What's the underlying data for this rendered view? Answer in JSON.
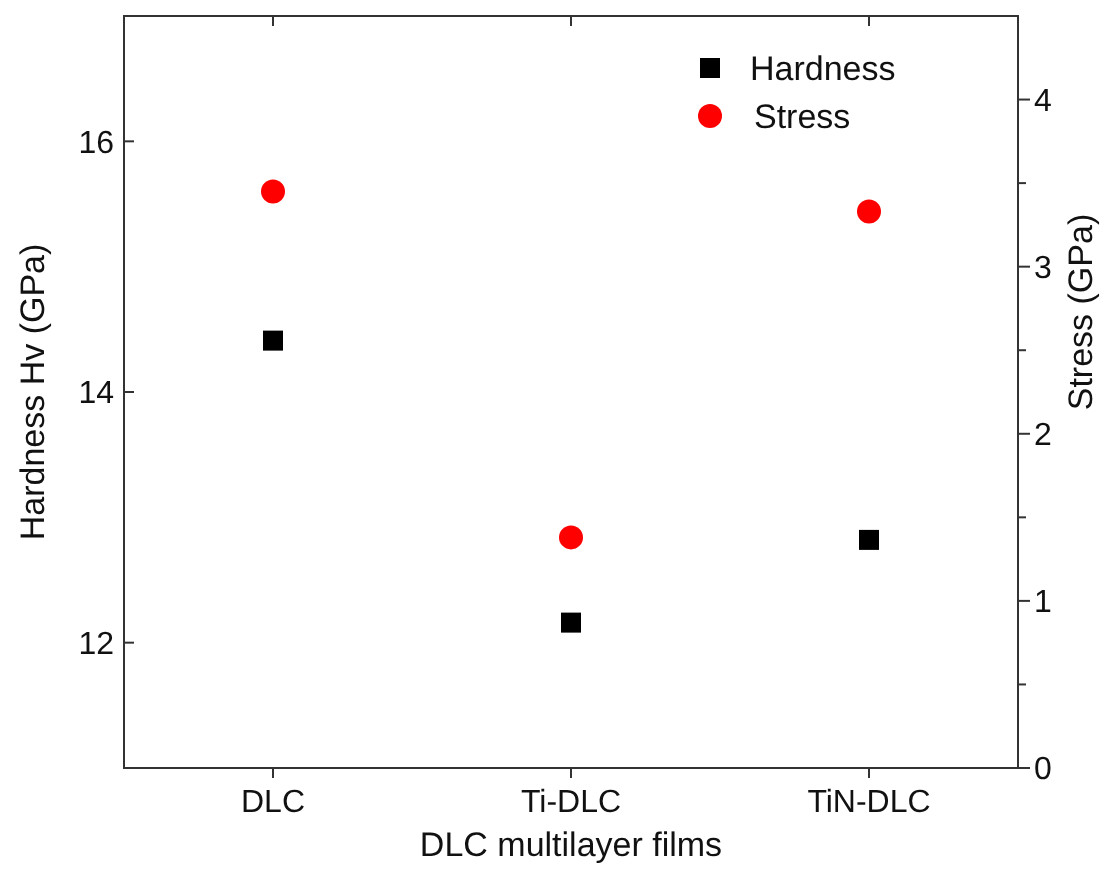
{
  "chart_data": {
    "type": "scatter",
    "xlabel": "DLC multilayer films",
    "ylabel": "Hardness Hv (GPa)",
    "y2label": "Stress (GPa)",
    "categories": [
      "DLC",
      "Ti-DLC",
      "TiN-DLC"
    ],
    "series": [
      {
        "name": "Hardness",
        "color": "#000000",
        "marker": "square",
        "values": [
          14.41,
          12.16,
          12.82
        ]
      },
      {
        "name": "Stress",
        "color": "#ff0000",
        "marker": "circle",
        "axis": "y2",
        "values": [
          3.45,
          1.38,
          3.33
        ]
      }
    ],
    "ylim": [
      11,
      17
    ],
    "yticks": [
      12,
      14,
      16
    ],
    "y2lim": [
      0,
      4.5
    ],
    "y2ticks": [
      0,
      {
        "value": 0.5,
        "label": null
      },
      1,
      {
        "value": 1.5,
        "label": null
      },
      2,
      {
        "value": 2.5,
        "label": null
      },
      3,
      {
        "value": 3.5,
        "label": null
      },
      4
    ],
    "legend": "top right",
    "grid": false
  }
}
